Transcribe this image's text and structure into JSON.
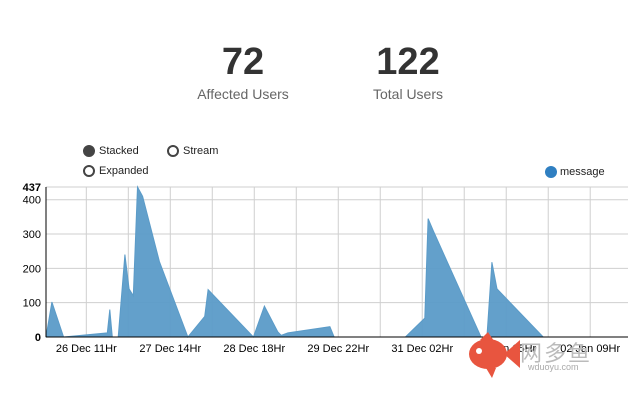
{
  "stats": {
    "affected": {
      "value": "72",
      "label": "Affected Users"
    },
    "total": {
      "value": "122",
      "label": "Total Users"
    }
  },
  "controls": {
    "modes": [
      {
        "label": "Stacked",
        "selected": true
      },
      {
        "label": "Stream",
        "selected": false
      },
      {
        "label": "Expanded",
        "selected": false
      }
    ]
  },
  "watermark": {
    "text": "网多鱼",
    "url": "wduoyu.com"
  },
  "chart_data": {
    "type": "area",
    "title": "",
    "xlabel": "",
    "ylabel": "",
    "ylim": [
      0,
      437
    ],
    "y_max_label": "437",
    "y_ticks": [
      0,
      100,
      200,
      300,
      400
    ],
    "x_tick_labels": [
      "26 Dec 11Hr",
      "27 Dec 14Hr",
      "28 Dec 18Hr",
      "29 Dec 22Hr",
      "31 Dec 02Hr",
      "01 Jan 05Hr",
      "02 Jan 09Hr"
    ],
    "x_tick_positions": [
      0.5,
      1.5,
      2.5,
      3.5,
      4.5,
      5.5,
      6.5
    ],
    "xlim": [
      0.02,
      6.95
    ],
    "grid": true,
    "legend_position": "top-right",
    "accent_color": "#5b9bc8",
    "series": [
      {
        "name": "message",
        "color": "#5b9bc8",
        "x": [
          0.02,
          0.09,
          0.23,
          0.75,
          0.78,
          0.81,
          0.88,
          0.96,
          1.01,
          1.06,
          1.11,
          1.17,
          1.37,
          1.71,
          1.91,
          1.95,
          2.49,
          2.62,
          2.78,
          2.82,
          2.9,
          3.4,
          3.45,
          4.3,
          4.53,
          4.57,
          4.63,
          5.2,
          5.27,
          5.33,
          5.39,
          5.94,
          6.95
        ],
        "values": [
          0,
          102,
          0,
          12,
          80,
          0,
          0,
          240,
          140,
          120,
          437,
          410,
          220,
          0,
          60,
          138,
          0,
          90,
          15,
          5,
          12,
          30,
          0,
          0,
          55,
          345,
          310,
          0,
          0,
          218,
          140,
          0,
          0
        ]
      }
    ]
  }
}
